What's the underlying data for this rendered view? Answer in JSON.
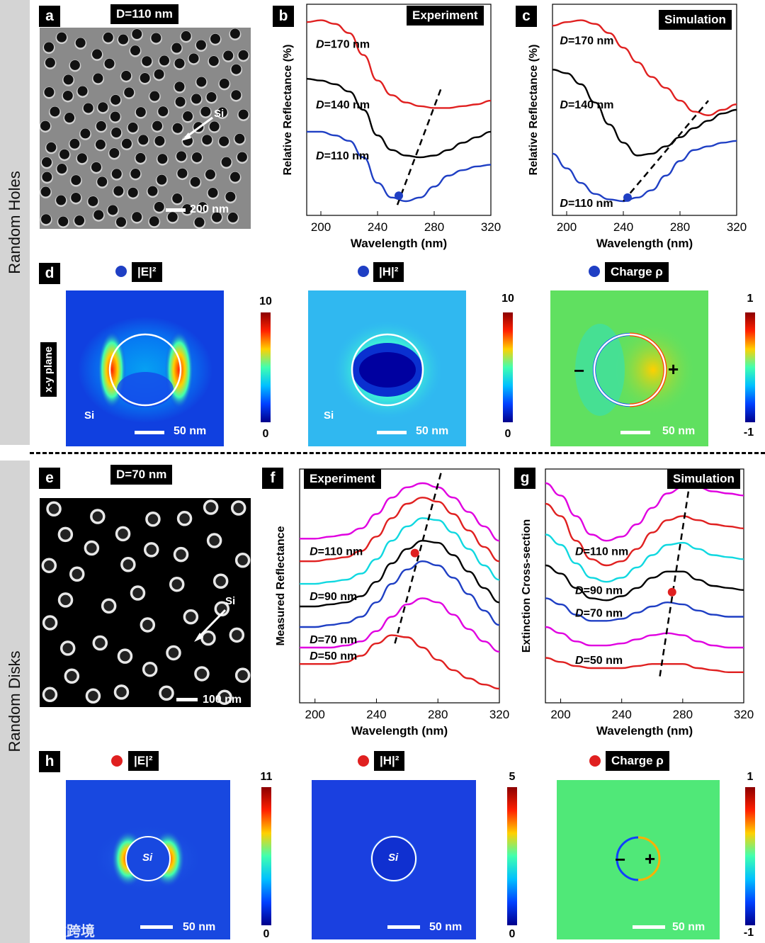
{
  "sections": [
    {
      "label": "Random Holes"
    },
    {
      "label": "Random Disks"
    }
  ],
  "panels": {
    "a": {
      "letter": "a",
      "title": "D=110 nm",
      "si_label": "Si",
      "scale": "200 nm"
    },
    "b": {
      "letter": "b",
      "tag": "Experiment"
    },
    "c": {
      "letter": "c",
      "tag": "Simulation"
    },
    "d": {
      "letter": "d",
      "plane": "x-y plane",
      "maps": [
        {
          "tag": "|E|²",
          "si": "Si",
          "scale": "50 nm",
          "cb_max": "10",
          "cb_min": "0",
          "dot": "#1f3fc4"
        },
        {
          "tag": "|H|²",
          "si": "Si",
          "scale": "50 nm",
          "cb_max": "10",
          "cb_min": "0",
          "dot": "#1f3fc4"
        },
        {
          "tag": "Charge ρ",
          "minus": "−",
          "plus": "+",
          "scale": "50 nm",
          "cb_max": "1",
          "cb_min": "-1",
          "dot": "#1f3fc4"
        }
      ]
    },
    "e": {
      "letter": "e",
      "title": "D=70 nm",
      "si_label": "Si",
      "scale": "100 nm"
    },
    "f": {
      "letter": "f",
      "tag": "Experiment"
    },
    "g": {
      "letter": "g",
      "tag": "Simulation"
    },
    "h": {
      "letter": "h",
      "maps": [
        {
          "tag": "|E|²",
          "si": "Si",
          "scale": "50 nm",
          "cb_max": "11",
          "cb_min": "0",
          "dot": "#e02020"
        },
        {
          "tag": "|H|²",
          "si": "Si",
          "scale": "50 nm",
          "cb_max": "5",
          "cb_min": "0",
          "dot": "#e02020"
        },
        {
          "tag": "Charge ρ",
          "minus": "−",
          "plus": "+",
          "scale": "50 nm",
          "cb_max": "1",
          "cb_min": "-1",
          "dot": "#e02020"
        }
      ]
    }
  },
  "chart_data": [
    {
      "id": "b",
      "type": "line",
      "title": "Experiment",
      "xlabel": "Wavelength (nm)",
      "ylabel": "Relative Reflectance (%)",
      "xlim": [
        190,
        320
      ],
      "ylim": [
        0,
        1
      ],
      "xticks": [
        200,
        240,
        280,
        320
      ],
      "series": [
        {
          "name": "D=170 nm",
          "color": "#e02020",
          "x": [
            190,
            200,
            210,
            220,
            230,
            240,
            250,
            260,
            270,
            280,
            290,
            300,
            310,
            320
          ],
          "y": [
            0.98,
            0.99,
            0.97,
            0.92,
            0.8,
            0.66,
            0.58,
            0.54,
            0.52,
            0.51,
            0.51,
            0.52,
            0.53,
            0.55
          ]
        },
        {
          "name": "D=140 nm",
          "color": "#000000",
          "x": [
            190,
            200,
            210,
            220,
            230,
            240,
            250,
            260,
            270,
            280,
            290,
            300,
            310,
            320
          ],
          "y": [
            0.67,
            0.66,
            0.64,
            0.6,
            0.5,
            0.36,
            0.28,
            0.25,
            0.24,
            0.25,
            0.28,
            0.32,
            0.35,
            0.38
          ]
        },
        {
          "name": "D=110 nm",
          "color": "#1f3fc4",
          "x": [
            190,
            200,
            210,
            220,
            230,
            240,
            250,
            260,
            270,
            280,
            290,
            300,
            310,
            320
          ],
          "y": [
            0.38,
            0.38,
            0.36,
            0.33,
            0.24,
            0.1,
            0.02,
            0.0,
            0.02,
            0.08,
            0.14,
            0.17,
            0.19,
            0.2
          ]
        }
      ],
      "marker": {
        "x": 255,
        "y": 0.03,
        "color": "#1f3fc4"
      },
      "dashed_line": {
        "x": [
          254,
          285
        ],
        "y": [
          -0.02,
          0.62
        ]
      }
    },
    {
      "id": "c",
      "type": "line",
      "title": "Simulation",
      "xlabel": "Wavelength (nm)",
      "ylabel": "Relative Reflectance (%)",
      "xlim": [
        190,
        320
      ],
      "ylim": [
        0,
        1
      ],
      "xticks": [
        200,
        240,
        280,
        320
      ],
      "series": [
        {
          "name": "D=170 nm",
          "color": "#e02020",
          "x": [
            190,
            200,
            210,
            220,
            230,
            240,
            250,
            260,
            270,
            280,
            290,
            300,
            310,
            320
          ],
          "y": [
            0.96,
            0.98,
            0.99,
            0.97,
            0.92,
            0.84,
            0.76,
            0.68,
            0.62,
            0.55,
            0.49,
            0.47,
            0.5,
            0.53
          ]
        },
        {
          "name": "D=140 nm",
          "color": "#000000",
          "x": [
            190,
            200,
            210,
            220,
            230,
            240,
            250,
            260,
            270,
            280,
            290,
            300,
            310,
            320
          ],
          "y": [
            0.72,
            0.7,
            0.64,
            0.54,
            0.42,
            0.32,
            0.25,
            0.26,
            0.3,
            0.35,
            0.4,
            0.44,
            0.48,
            0.5
          ]
        },
        {
          "name": "D=110 nm",
          "color": "#1f3fc4",
          "x": [
            190,
            200,
            210,
            220,
            230,
            240,
            250,
            260,
            270,
            280,
            290,
            300,
            310,
            320
          ],
          "y": [
            0.26,
            0.18,
            0.1,
            0.04,
            0.01,
            0.0,
            0.02,
            0.06,
            0.14,
            0.22,
            0.28,
            0.3,
            0.32,
            0.33
          ]
        }
      ],
      "marker": {
        "x": 243,
        "y": 0.02,
        "color": "#1f3fc4"
      },
      "dashed_line": {
        "x": [
          240,
          300
        ],
        "y": [
          0.0,
          0.55
        ]
      }
    },
    {
      "id": "f",
      "type": "line",
      "title": "Experiment",
      "xlabel": "Wavelength (nm)",
      "ylabel": "Measured Reflectance",
      "xlim": [
        190,
        320
      ],
      "ylim": [
        0,
        1
      ],
      "xticks": [
        200,
        240,
        280,
        320
      ],
      "series": [
        {
          "name": "",
          "color": "#e000e0",
          "x": [
            190,
            200,
            210,
            220,
            230,
            240,
            250,
            260,
            270,
            280,
            290,
            300,
            310,
            320
          ],
          "y": [
            0.73,
            0.73,
            0.74,
            0.75,
            0.78,
            0.85,
            0.93,
            0.98,
            1.0,
            0.98,
            0.93,
            0.86,
            0.79,
            0.72
          ]
        },
        {
          "name": "D=110 nm",
          "color": "#e02020",
          "x": [
            190,
            200,
            210,
            220,
            230,
            240,
            250,
            260,
            270,
            280,
            290,
            300,
            310,
            320
          ],
          "y": [
            0.62,
            0.62,
            0.63,
            0.64,
            0.67,
            0.74,
            0.83,
            0.9,
            0.93,
            0.91,
            0.85,
            0.77,
            0.69,
            0.62
          ]
        },
        {
          "name": "",
          "color": "#10d8e0",
          "x": [
            190,
            200,
            210,
            220,
            230,
            240,
            250,
            260,
            270,
            280,
            290,
            300,
            310,
            320
          ],
          "y": [
            0.51,
            0.51,
            0.52,
            0.53,
            0.56,
            0.63,
            0.72,
            0.79,
            0.83,
            0.82,
            0.76,
            0.68,
            0.6,
            0.53
          ]
        },
        {
          "name": "D=90 nm",
          "color": "#000000",
          "x": [
            190,
            200,
            210,
            220,
            230,
            240,
            250,
            260,
            270,
            280,
            290,
            300,
            310,
            320
          ],
          "y": [
            0.4,
            0.4,
            0.41,
            0.42,
            0.45,
            0.52,
            0.61,
            0.68,
            0.72,
            0.71,
            0.65,
            0.57,
            0.49,
            0.42
          ]
        },
        {
          "name": "",
          "color": "#1f3fc4",
          "x": [
            190,
            200,
            210,
            220,
            230,
            240,
            250,
            260,
            270,
            280,
            290,
            300,
            310,
            320
          ],
          "y": [
            0.3,
            0.3,
            0.31,
            0.32,
            0.35,
            0.42,
            0.51,
            0.58,
            0.62,
            0.6,
            0.54,
            0.46,
            0.38,
            0.31
          ]
        },
        {
          "name": "D=70 nm",
          "color": "#e000e0",
          "x": [
            190,
            200,
            210,
            220,
            230,
            240,
            250,
            260,
            270,
            280,
            290,
            300,
            310,
            320
          ],
          "y": [
            0.2,
            0.2,
            0.2,
            0.21,
            0.23,
            0.28,
            0.35,
            0.41,
            0.44,
            0.42,
            0.36,
            0.29,
            0.23,
            0.18
          ]
        },
        {
          "name": "D=50 nm",
          "color": "#e02020",
          "x": [
            190,
            200,
            210,
            220,
            230,
            240,
            250,
            260,
            270,
            280,
            290,
            300,
            310,
            320
          ],
          "y": [
            0.12,
            0.12,
            0.12,
            0.13,
            0.16,
            0.22,
            0.26,
            0.25,
            0.2,
            0.14,
            0.09,
            0.05,
            0.02,
            0.0
          ]
        }
      ],
      "marker": {
        "x": 265,
        "y": 0.66,
        "color": "#e02020"
      },
      "dashed_line": {
        "x": [
          252,
          282
        ],
        "y": [
          0.22,
          1.05
        ]
      }
    },
    {
      "id": "g",
      "type": "line",
      "title": "Simulation",
      "xlabel": "Wavelength (nm)",
      "ylabel": "Extinction Cross-section",
      "xlim": [
        190,
        320
      ],
      "ylim": [
        0,
        1
      ],
      "xticks": [
        200,
        240,
        280,
        320
      ],
      "series": [
        {
          "name": "",
          "color": "#e000e0",
          "x": [
            190,
            200,
            210,
            220,
            230,
            240,
            250,
            260,
            270,
            280,
            290,
            300,
            310,
            320
          ],
          "y": [
            1.0,
            0.94,
            0.84,
            0.75,
            0.72,
            0.74,
            0.8,
            0.88,
            0.95,
            0.98,
            0.98,
            0.96,
            0.95,
            0.94
          ]
        },
        {
          "name": "D=110 nm",
          "color": "#e02020",
          "x": [
            190,
            200,
            210,
            220,
            230,
            240,
            250,
            260,
            270,
            280,
            290,
            300,
            310,
            320
          ],
          "y": [
            0.9,
            0.84,
            0.72,
            0.63,
            0.6,
            0.62,
            0.68,
            0.76,
            0.82,
            0.84,
            0.82,
            0.8,
            0.79,
            0.78
          ]
        },
        {
          "name": "",
          "color": "#10d8e0",
          "x": [
            190,
            200,
            210,
            220,
            230,
            240,
            250,
            260,
            270,
            280,
            290,
            300,
            310,
            320
          ],
          "y": [
            0.75,
            0.7,
            0.61,
            0.54,
            0.52,
            0.54,
            0.59,
            0.65,
            0.7,
            0.71,
            0.68,
            0.65,
            0.64,
            0.63
          ]
        },
        {
          "name": "D=90 nm",
          "color": "#000000",
          "x": [
            190,
            200,
            210,
            220,
            230,
            240,
            250,
            260,
            270,
            280,
            290,
            300,
            310,
            320
          ],
          "y": [
            0.6,
            0.56,
            0.49,
            0.44,
            0.43,
            0.45,
            0.49,
            0.54,
            0.57,
            0.57,
            0.53,
            0.5,
            0.49,
            0.48
          ]
        },
        {
          "name": "D=70 nm",
          "color": "#1f3fc4",
          "x": [
            190,
            200,
            210,
            220,
            230,
            240,
            250,
            260,
            270,
            280,
            290,
            300,
            310,
            320
          ],
          "y": [
            0.44,
            0.41,
            0.36,
            0.33,
            0.33,
            0.34,
            0.37,
            0.4,
            0.42,
            0.41,
            0.38,
            0.36,
            0.35,
            0.35
          ]
        },
        {
          "name": "",
          "color": "#e000e0",
          "x": [
            190,
            200,
            210,
            220,
            230,
            240,
            250,
            260,
            270,
            280,
            290,
            300,
            310,
            320
          ],
          "y": [
            0.3,
            0.27,
            0.23,
            0.21,
            0.21,
            0.22,
            0.24,
            0.26,
            0.27,
            0.26,
            0.23,
            0.21,
            0.2,
            0.2
          ]
        },
        {
          "name": "D=50 nm",
          "color": "#e02020",
          "x": [
            190,
            200,
            210,
            220,
            230,
            240,
            250,
            260,
            270,
            280,
            290,
            300,
            310,
            320
          ],
          "y": [
            0.15,
            0.13,
            0.11,
            0.1,
            0.1,
            0.1,
            0.11,
            0.12,
            0.12,
            0.12,
            0.1,
            0.09,
            0.08,
            0.08
          ]
        }
      ],
      "marker": {
        "x": 273,
        "y": 0.47,
        "color": "#e02020"
      },
      "dashed_line": {
        "x": [
          265,
          285
        ],
        "y": [
          0.06,
          1.02
        ]
      }
    }
  ],
  "watermark": "大数跨境"
}
